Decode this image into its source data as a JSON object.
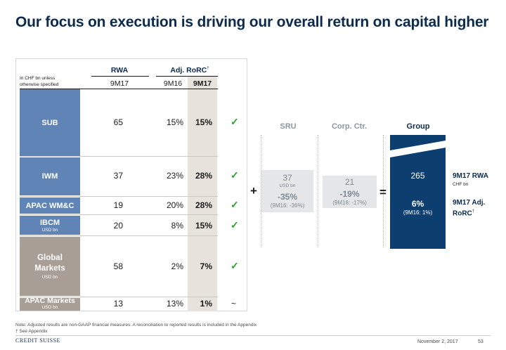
{
  "title": "Our focus on execution is driving our overall return on capital higher",
  "table": {
    "note_line1": "In CHF bn unless",
    "note_line2": "otherwise specified",
    "rwa_header": "RWA",
    "rorc_header": "Adj. RoRC",
    "rorc_dagger": "†",
    "col_rwa": "9M17",
    "col_9m16": "9M16",
    "col_9m17": "9M17",
    "rows": [
      {
        "label": "SUB",
        "sub": "",
        "rwa": "65",
        "rorc16": "15%",
        "rorc17": "15%",
        "mark": "✓"
      },
      {
        "label": "IWM",
        "sub": "",
        "rwa": "37",
        "rorc16": "23%",
        "rorc17": "28%",
        "mark": "✓"
      },
      {
        "label": "APAC WM&C",
        "sub": "",
        "rwa": "19",
        "rorc16": "20%",
        "rorc17": "28%",
        "mark": "✓"
      },
      {
        "label": "IBCM",
        "sub": "USD bn",
        "rwa": "20",
        "rorc16": "8%",
        "rorc17": "15%",
        "mark": "✓"
      },
      {
        "label": "Global Markets",
        "sub": "USD bn",
        "rwa": "58",
        "rorc16": "2%",
        "rorc17": "7%",
        "mark": "✓"
      },
      {
        "label": "APAC Markets",
        "sub": "USD bn",
        "rwa": "13",
        "rorc16": "13%",
        "rorc17": "1%",
        "mark": "~"
      }
    ]
  },
  "summary": {
    "sru_header": "SRU",
    "corp_header": "Corp. Ctr.",
    "group_header": "Group",
    "plus": "+",
    "equals": "=",
    "sru": {
      "value": "37",
      "unit": "USD bn",
      "rorc": "-35%",
      "prev": "(9M16: -36%)"
    },
    "corp": {
      "value": "21",
      "rorc": "-19%",
      "prev": "(9M16: -17%)"
    },
    "group": {
      "value": "265",
      "rorc": "6%",
      "prev": "(9M16: 1%)"
    },
    "rwa_label": "9M17 RWA",
    "rwa_unit": "CHF bn",
    "rorc_label_1": "9M17 Adj.",
    "rorc_label_2": "RoRC",
    "rorc_dagger": "†"
  },
  "footnotes": {
    "note": "Note: Adjusted results are non-GAAP financial measures. A reconciliation to reported results is included in the Appendix",
    "dagger": "† See Appendix"
  },
  "footer": {
    "logo": "CREDIT SUISSE",
    "date": "November 2, 2017",
    "page": "53"
  },
  "colors": {
    "navy": "#0c3e6f",
    "row_blue": "#5f84b5",
    "row_taupe": "#a89e95",
    "check_green": "#2aa12a"
  }
}
